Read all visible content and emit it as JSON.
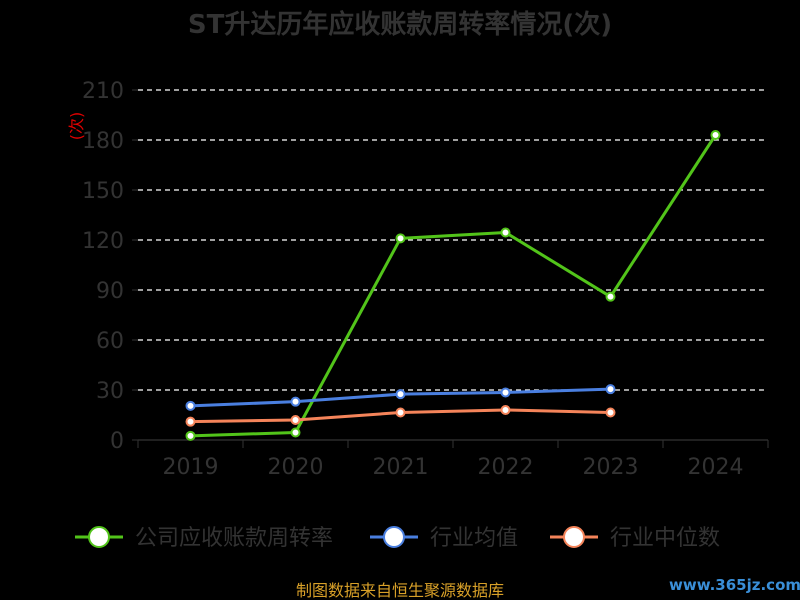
{
  "chart_data": {
    "type": "line",
    "title": "ST升达历年应收账款周转率情况(次)",
    "ylabel": "(次)",
    "xlabel": "",
    "categories": [
      "2019",
      "2020",
      "2021",
      "2022",
      "2023",
      "2024"
    ],
    "ylim": [
      0,
      210
    ],
    "yticks": [
      0,
      30,
      60,
      90,
      120,
      150,
      180,
      210
    ],
    "grid": "horizontal-dashed",
    "legend_position": "bottom",
    "series": [
      {
        "name": "公司应收账款周转率",
        "color": "#52c41a",
        "values": [
          2.5,
          4.5,
          121,
          124.5,
          86,
          183
        ]
      },
      {
        "name": "行业均值",
        "color": "#4a7fe0",
        "values": [
          20.5,
          23,
          27.5,
          28.5,
          30.5,
          null
        ]
      },
      {
        "name": "行业中位数",
        "color": "#f5845a",
        "values": [
          11,
          12,
          16.5,
          18,
          16.5,
          null
        ]
      }
    ]
  },
  "footer": {
    "source": "制图数据来自恒生聚源数据库",
    "watermark": "www.365jz.com"
  }
}
